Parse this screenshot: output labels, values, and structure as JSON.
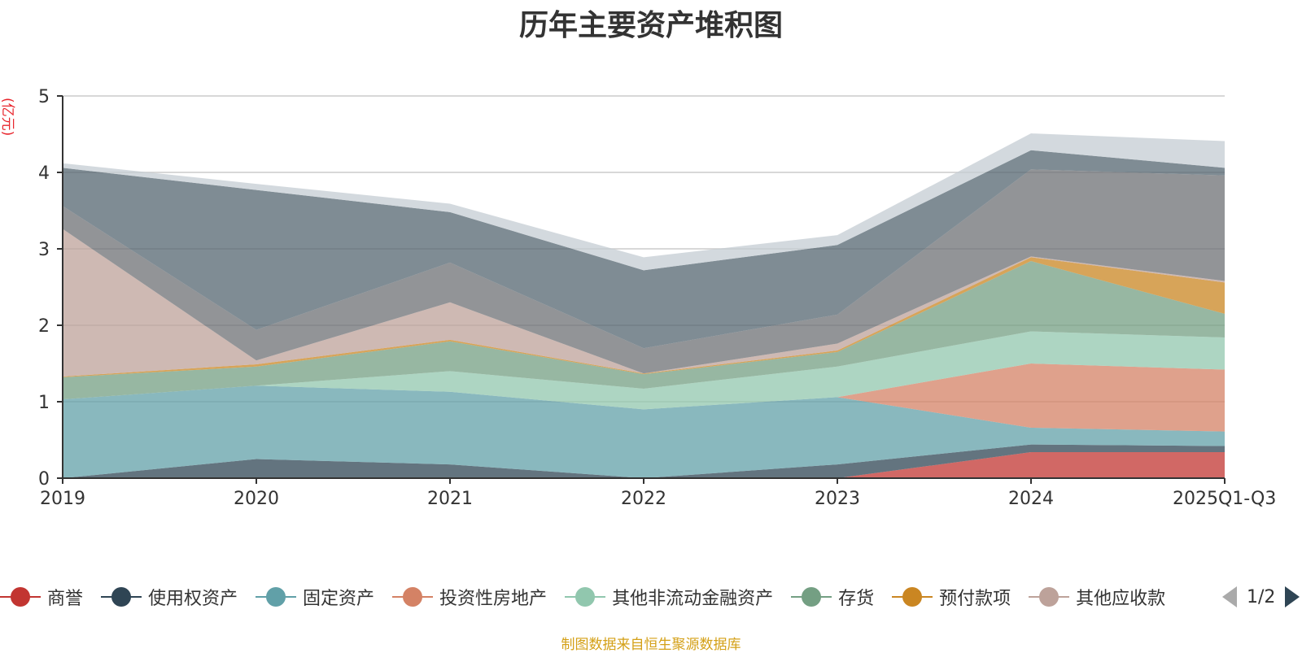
{
  "chart_data": {
    "type": "area",
    "stacked": true,
    "title": "历年主要资产堆积图",
    "ylabel": "(亿元)",
    "xlabel": "",
    "ylim": [
      0,
      5
    ],
    "yticks": [
      0,
      1,
      2,
      3,
      4,
      5
    ],
    "grid": true,
    "categories": [
      "2019",
      "2020",
      "2021",
      "2022",
      "2023",
      "2024",
      "2025Q1-Q3"
    ],
    "series": [
      {
        "name": "商誉",
        "color": "#c23531",
        "values": [
          0,
          0,
          0,
          0,
          0,
          0.34,
          0.34
        ],
        "legend": true
      },
      {
        "name": "使用权资产",
        "color": "#2f4554",
        "values": [
          0,
          0.25,
          0.18,
          0,
          0.18,
          0.1,
          0.08
        ],
        "legend": true
      },
      {
        "name": "固定资产",
        "color": "#61a0a8",
        "values": [
          1.03,
          0.96,
          0.95,
          0.9,
          0.88,
          0.22,
          0.19
        ],
        "legend": true
      },
      {
        "name": "投资性房地产",
        "color": "#d48265",
        "values": [
          0,
          0,
          0,
          0,
          0,
          0.84,
          0.81
        ],
        "legend": true
      },
      {
        "name": "其他非流动金融资产",
        "color": "#91c7ae",
        "values": [
          0,
          0,
          0.27,
          0.27,
          0.4,
          0.42,
          0.42
        ],
        "legend": true
      },
      {
        "name": "存货",
        "color": "#749f83",
        "values": [
          0.29,
          0.25,
          0.39,
          0.19,
          0.19,
          0.92,
          0.31
        ],
        "legend": true
      },
      {
        "name": "预付款项",
        "color": "#ca8622",
        "values": [
          0.01,
          0.03,
          0.02,
          0.01,
          0.02,
          0.05,
          0.41
        ],
        "legend": true
      },
      {
        "name": "其他应收款",
        "color": "#bda29a",
        "values": [
          1.93,
          0.05,
          0.49,
          0.0,
          0.09,
          0.01,
          0.02
        ],
        "legend": true
      },
      {
        "name": "series-9",
        "color": "#6e7074",
        "values": [
          0.3,
          0.4,
          0.52,
          0.33,
          0.38,
          1.14,
          1.38
        ],
        "legend": false
      },
      {
        "name": "series-10",
        "color": "#546570",
        "values": [
          0.5,
          1.83,
          0.66,
          1.02,
          0.91,
          0.25,
          0.1
        ],
        "legend": false
      },
      {
        "name": "series-11",
        "color": "#c4ccd3",
        "values": [
          0.06,
          0.08,
          0.11,
          0.17,
          0.13,
          0.22,
          0.35
        ],
        "legend": false
      }
    ]
  },
  "legend": {
    "page_text": "1/2"
  },
  "source_text": "制图数据来自恒生聚源数据库"
}
